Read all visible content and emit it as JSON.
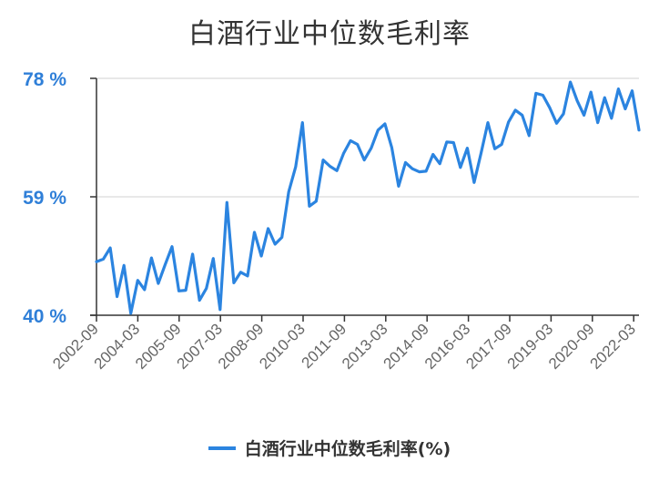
{
  "colors": {
    "series": "#2b84e0",
    "axis": "#333333",
    "grid": "#e0e0e0",
    "ytick": "#2f7fd8"
  },
  "chart_data": {
    "type": "line",
    "title": "白酒行业中位数毛利率",
    "xlabel": "",
    "ylabel": "",
    "ylim": [
      40,
      78
    ],
    "yticks": [
      40,
      59,
      78
    ],
    "ytick_labels": [
      "40 %",
      "59 %",
      "78 %"
    ],
    "xtick_labels": [
      "2002-09",
      "2004-03",
      "2005-09",
      "2007-03",
      "2008-09",
      "2010-03",
      "2011-09",
      "2013-03",
      "2014-09",
      "2016-03",
      "2017-09",
      "2019-03",
      "2020-09",
      "2022-03"
    ],
    "grid": "horizontal",
    "legend_position": "bottom",
    "series": [
      {
        "name": "白酒行业中位数毛利率(%)",
        "values": [
          48.6,
          49.0,
          50.8,
          43.0,
          48.0,
          40.3,
          45.6,
          44.1,
          49.2,
          45.1,
          48.1,
          51.0,
          43.9,
          44.0,
          49.8,
          42.4,
          44.3,
          49.1,
          40.9,
          58.1,
          45.2,
          46.9,
          46.3,
          53.3,
          49.5,
          53.9,
          51.4,
          52.5,
          59.8,
          63.8,
          70.9,
          57.5,
          58.3,
          64.9,
          63.9,
          63.2,
          66.0,
          68.0,
          67.4,
          64.9,
          66.8,
          69.7,
          70.7,
          66.9,
          60.7,
          64.5,
          63.5,
          63.0,
          63.1,
          65.8,
          64.3,
          67.8,
          67.7,
          63.7,
          66.8,
          61.3,
          66.0,
          70.9,
          66.7,
          67.4,
          71.0,
          72.9,
          72.1,
          68.8,
          75.6,
          75.3,
          73.3,
          70.8,
          72.3,
          77.4,
          74.4,
          72.1,
          75.8,
          70.9,
          74.9,
          71.6,
          76.3,
          73.1,
          76.0,
          69.7
        ]
      }
    ]
  }
}
